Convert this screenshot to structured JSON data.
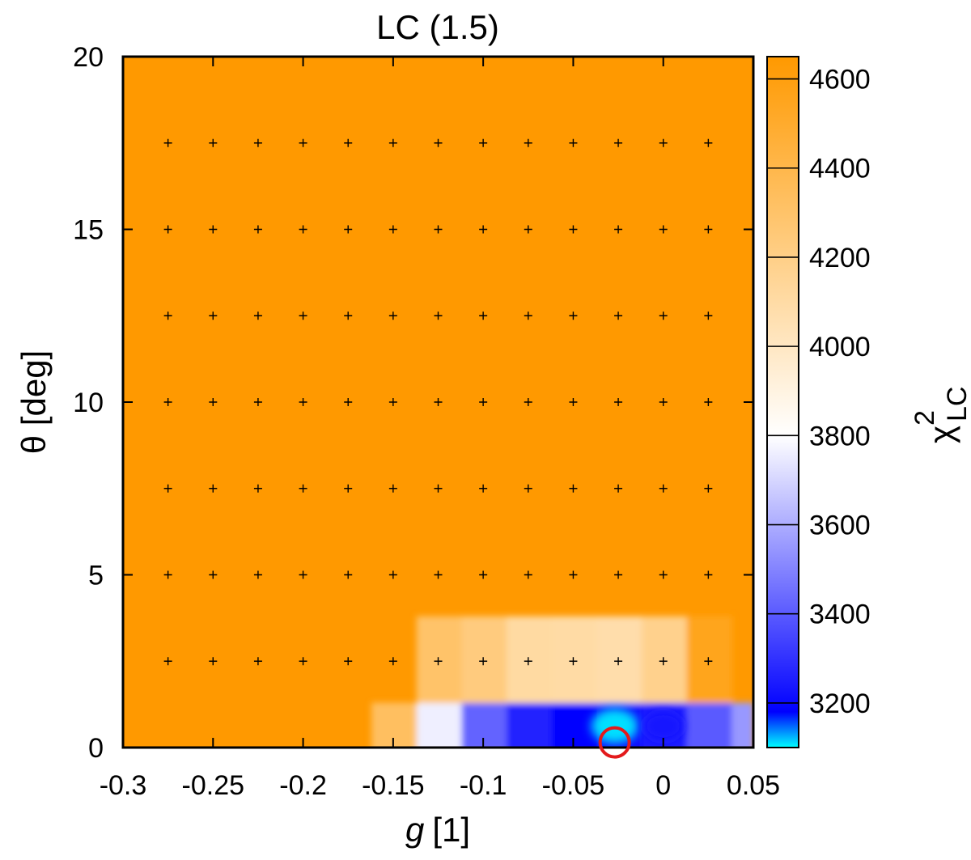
{
  "chart_data": {
    "type": "heatmap",
    "title": "LC (1.5)",
    "xlabel_var": "g",
    "xlabel_unit": "[1]",
    "ylabel": "θ [deg]",
    "colorbar_label_base": "χ",
    "colorbar_label_sup": "2",
    "colorbar_label_sub": "LC",
    "xlim": [
      -0.3,
      0.05
    ],
    "ylim": [
      0,
      20
    ],
    "clim": [
      3100,
      4650
    ],
    "x_ticks": [
      {
        "value": -0.3,
        "label": "-0.3"
      },
      {
        "value": -0.25,
        "label": "-0.25"
      },
      {
        "value": -0.2,
        "label": "-0.2"
      },
      {
        "value": -0.15,
        "label": "-0.15"
      },
      {
        "value": -0.1,
        "label": "-0.1"
      },
      {
        "value": -0.05,
        "label": "-0.05"
      },
      {
        "value": 0,
        "label": "0"
      },
      {
        "value": 0.05,
        "label": "0.05"
      }
    ],
    "y_ticks": [
      {
        "value": 0,
        "label": "0"
      },
      {
        "value": 5,
        "label": "5"
      },
      {
        "value": 10,
        "label": "10"
      },
      {
        "value": 15,
        "label": "15"
      },
      {
        "value": 20,
        "label": "20"
      }
    ],
    "colorbar_ticks": [
      {
        "value": 3200,
        "label": "3200"
      },
      {
        "value": 3400,
        "label": "3400"
      },
      {
        "value": 3600,
        "label": "3600"
      },
      {
        "value": 3800,
        "label": "3800"
      },
      {
        "value": 4000,
        "label": "4000"
      },
      {
        "value": 4200,
        "label": "4200"
      },
      {
        "value": 4400,
        "label": "4400"
      },
      {
        "value": 4600,
        "label": "4600"
      }
    ],
    "colormap": [
      {
        "value": 3100,
        "color": "#00ffff"
      },
      {
        "value": 3180,
        "color": "#0000ff"
      },
      {
        "value": 3800,
        "color": "#ffffff"
      },
      {
        "value": 4650,
        "color": "#ff9900"
      }
    ],
    "grid_x": [
      -0.275,
      -0.225,
      -0.175,
      -0.125,
      -0.075,
      -0.025,
      0.025
    ],
    "grid_y": [
      2.5,
      7.5,
      12.5,
      17.5
    ],
    "grid_x2": [
      -0.25,
      -0.2,
      -0.15,
      -0.1,
      -0.05,
      0
    ],
    "grid_y2": [
      5,
      10,
      15
    ],
    "background_value": 4650,
    "cells": [
      {
        "x0": -0.162,
        "x1": -0.137,
        "y0": 0,
        "y1": 1.3,
        "value": 4330
      },
      {
        "x0": -0.137,
        "x1": -0.112,
        "y0": 0,
        "y1": 1.3,
        "value": 3760
      },
      {
        "x0": -0.112,
        "x1": -0.087,
        "y0": 0,
        "y1": 1.3,
        "value": 3420
      },
      {
        "x0": -0.087,
        "x1": -0.062,
        "y0": 0,
        "y1": 1.3,
        "value": 3260
      },
      {
        "x0": -0.062,
        "x1": -0.037,
        "y0": 0,
        "y1": 1.3,
        "value": 3190
      },
      {
        "x0": -0.037,
        "x1": -0.012,
        "y0": 0,
        "y1": 1.3,
        "value": 3200
      },
      {
        "x0": -0.012,
        "x1": 0.013,
        "y0": 0,
        "y1": 1.3,
        "value": 3250
      },
      {
        "x0": 0.013,
        "x1": 0.038,
        "y0": 0,
        "y1": 1.3,
        "value": 3400
      },
      {
        "x0": 0.038,
        "x1": 0.05,
        "y0": 0,
        "y1": 1.3,
        "value": 3550
      },
      {
        "x0": -0.137,
        "x1": -0.112,
        "y0": 1.3,
        "y1": 3.8,
        "value": 4300
      },
      {
        "x0": -0.112,
        "x1": -0.087,
        "y0": 1.3,
        "y1": 3.8,
        "value": 4230
      },
      {
        "x0": -0.087,
        "x1": -0.062,
        "y0": 1.3,
        "y1": 3.8,
        "value": 4110
      },
      {
        "x0": -0.062,
        "x1": -0.037,
        "y0": 1.3,
        "y1": 3.8,
        "value": 4100
      },
      {
        "x0": -0.037,
        "x1": -0.012,
        "y0": 1.3,
        "y1": 3.8,
        "value": 4080
      },
      {
        "x0": -0.012,
        "x1": 0.013,
        "y0": 1.3,
        "y1": 3.8,
        "value": 4180
      },
      {
        "x0": 0.013,
        "x1": 0.038,
        "y0": 1.3,
        "y1": 3.8,
        "value": 4550
      }
    ],
    "blobs": [
      {
        "x": -0.027,
        "y": 0.62,
        "rx": 0.013,
        "ry": 0.5,
        "value": 3110
      },
      {
        "x": 0.0,
        "y": 0.62,
        "rx": 0.011,
        "ry": 0.42,
        "value": 3240
      }
    ],
    "marker": {
      "x": -0.027,
      "y": 0.15,
      "color": "#e31a1c"
    }
  }
}
